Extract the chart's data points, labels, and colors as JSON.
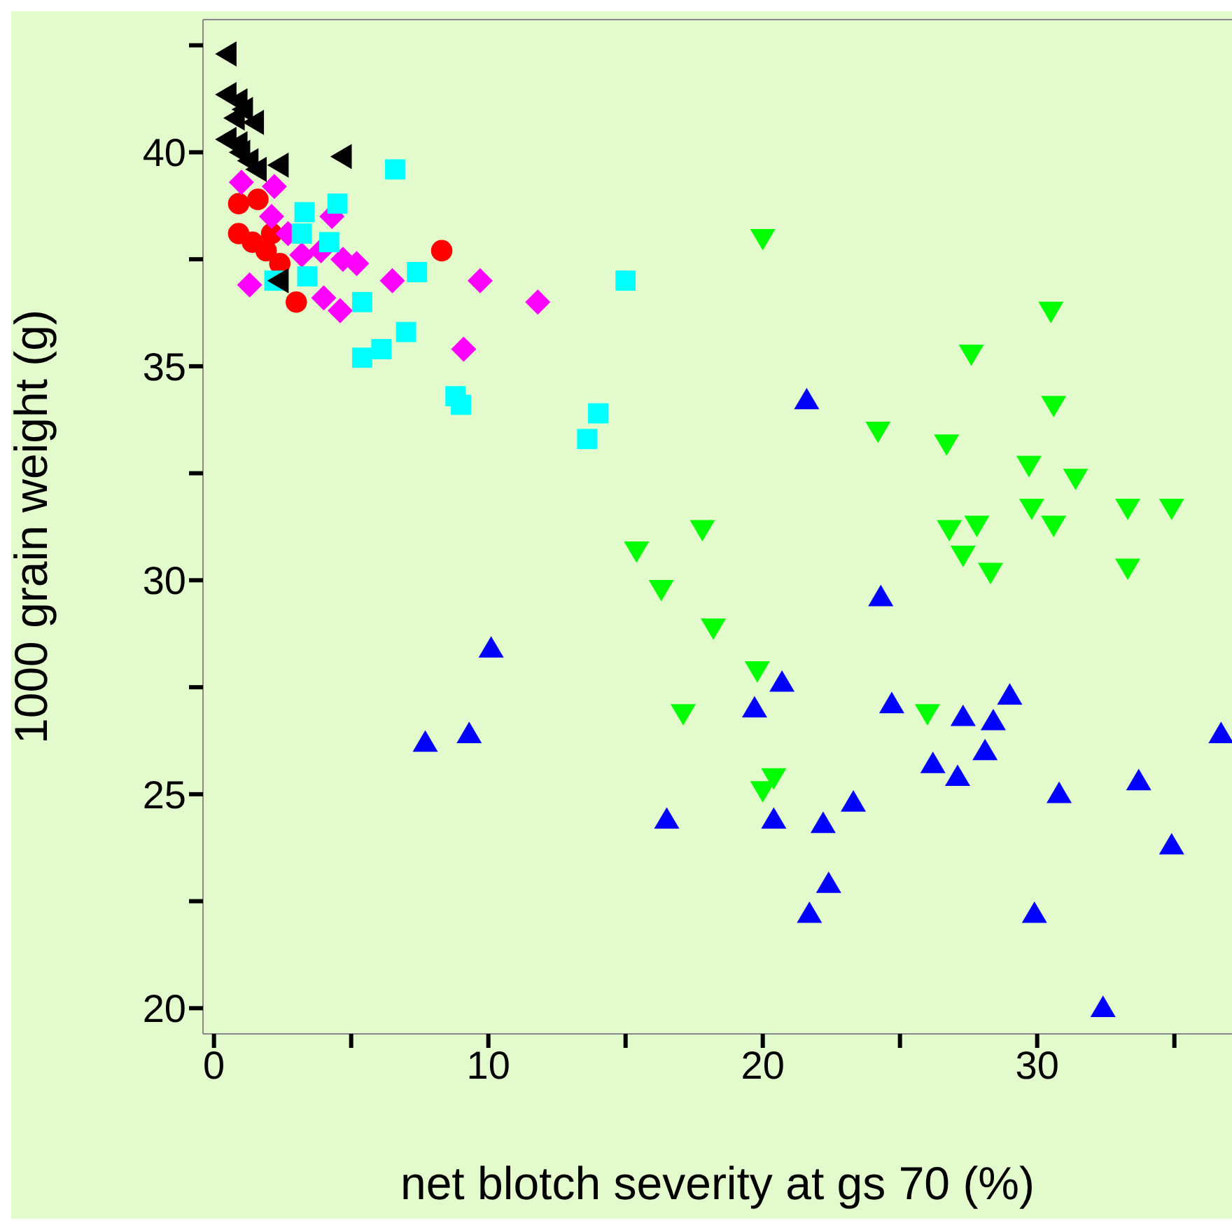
{
  "chart_data": {
    "type": "scatter",
    "xlabel": "net blotch severity at gs 70 (%)",
    "ylabel": "1000 grain weight (g)",
    "xlim": [
      -0.4,
      37.1
    ],
    "ylim": [
      19.4,
      43.1
    ],
    "xticks": [
      0,
      {
        "value": 5,
        "label": null
      },
      10,
      {
        "value": 15,
        "label": null
      },
      20,
      {
        "value": 25,
        "label": null
      },
      30,
      {
        "value": 35,
        "label": null
      }
    ],
    "yticks": [
      20,
      {
        "value": 22.5,
        "label": null
      },
      25,
      {
        "value": 27.5,
        "label": null
      },
      30,
      {
        "value": 32.5,
        "label": null
      },
      35,
      {
        "value": 37.5,
        "label": null
      },
      40,
      {
        "value": 42.5,
        "label": null
      }
    ],
    "grid": false,
    "legend": false,
    "series": [
      {
        "color": "#ff0000",
        "marker": "circle",
        "x": [
          0.9,
          1.6,
          1.4,
          1.9,
          2.1,
          0.9,
          3.0,
          8.3,
          2.4
        ],
        "values": [
          38.8,
          38.9,
          37.9,
          37.7,
          38.1,
          38.1,
          36.5,
          37.7,
          37.4
        ]
      },
      {
        "color": "#ff00ff",
        "marker": "diamond",
        "x": [
          1.0,
          2.2,
          2.1,
          2.7,
          4.3,
          1.3,
          3.9,
          5.2,
          4.0,
          4.6,
          6.5,
          9.7,
          11.8,
          9.1,
          4.7,
          3.2
        ],
        "values": [
          39.3,
          39.2,
          38.5,
          38.1,
          38.5,
          36.9,
          37.7,
          37.4,
          36.6,
          36.3,
          37.0,
          37.0,
          36.5,
          35.4,
          37.5,
          37.6
        ]
      },
      {
        "color": "#00ffff",
        "marker": "square",
        "x": [
          3.3,
          4.5,
          6.6,
          4.2,
          3.2,
          5.4,
          7.4,
          15.0,
          5.4,
          6.1,
          7.0,
          8.8,
          9.0,
          14.0,
          13.6,
          2.2,
          3.4
        ],
        "values": [
          38.6,
          38.8,
          39.6,
          37.9,
          38.1,
          36.5,
          37.2,
          37.0,
          35.2,
          35.4,
          35.8,
          34.3,
          34.1,
          33.9,
          33.3,
          37.0,
          37.1
        ]
      },
      {
        "color": "#00ff00",
        "marker": "triangle-down",
        "x": [
          30.5,
          27.6,
          30.6,
          24.2,
          26.7,
          29.7,
          31.4,
          29.8,
          30.6,
          33.3,
          34.9,
          26.8,
          27.8,
          27.3,
          28.3,
          33.3,
          17.8,
          15.4,
          16.3,
          18.2,
          20.0,
          19.8,
          17.1,
          20.4,
          20.0,
          26.0
        ],
        "values": [
          36.3,
          35.3,
          34.1,
          33.5,
          33.2,
          32.7,
          32.4,
          31.7,
          31.3,
          31.7,
          31.7,
          31.2,
          31.3,
          30.6,
          30.2,
          30.3,
          31.2,
          30.7,
          29.8,
          28.9,
          38.0,
          27.9,
          26.9,
          25.4,
          25.1,
          26.9
        ]
      },
      {
        "color": "#0000ff",
        "marker": "triangle",
        "x": [
          21.6,
          24.3,
          10.1,
          7.7,
          9.3,
          20.7,
          19.7,
          16.5,
          20.4,
          24.7,
          27.3,
          29.0,
          28.4,
          28.1,
          26.2,
          27.1,
          36.7,
          23.3,
          22.2,
          30.8,
          33.7,
          22.4,
          21.7,
          29.9,
          34.9,
          32.4
        ],
        "values": [
          34.2,
          29.6,
          28.4,
          26.2,
          26.4,
          27.6,
          27.0,
          24.4,
          24.4,
          27.1,
          26.8,
          27.3,
          26.7,
          26.0,
          25.7,
          25.4,
          26.4,
          24.8,
          24.3,
          25.0,
          25.3,
          22.9,
          22.2,
          22.2,
          23.8,
          20.0
        ]
      },
      {
        "color": "#000000",
        "marker": "triangle-left",
        "x": [
          0.5,
          0.5,
          0.9,
          1.1,
          1.5,
          0.5,
          0.9,
          1.3,
          1.6,
          2.4,
          4.7,
          2.4,
          1.0,
          0.8
        ],
        "values": [
          42.3,
          41.35,
          41.2,
          41.0,
          40.7,
          40.3,
          40.2,
          39.8,
          39.6,
          39.7,
          39.9,
          37.0,
          40.0,
          40.8
        ]
      }
    ]
  }
}
